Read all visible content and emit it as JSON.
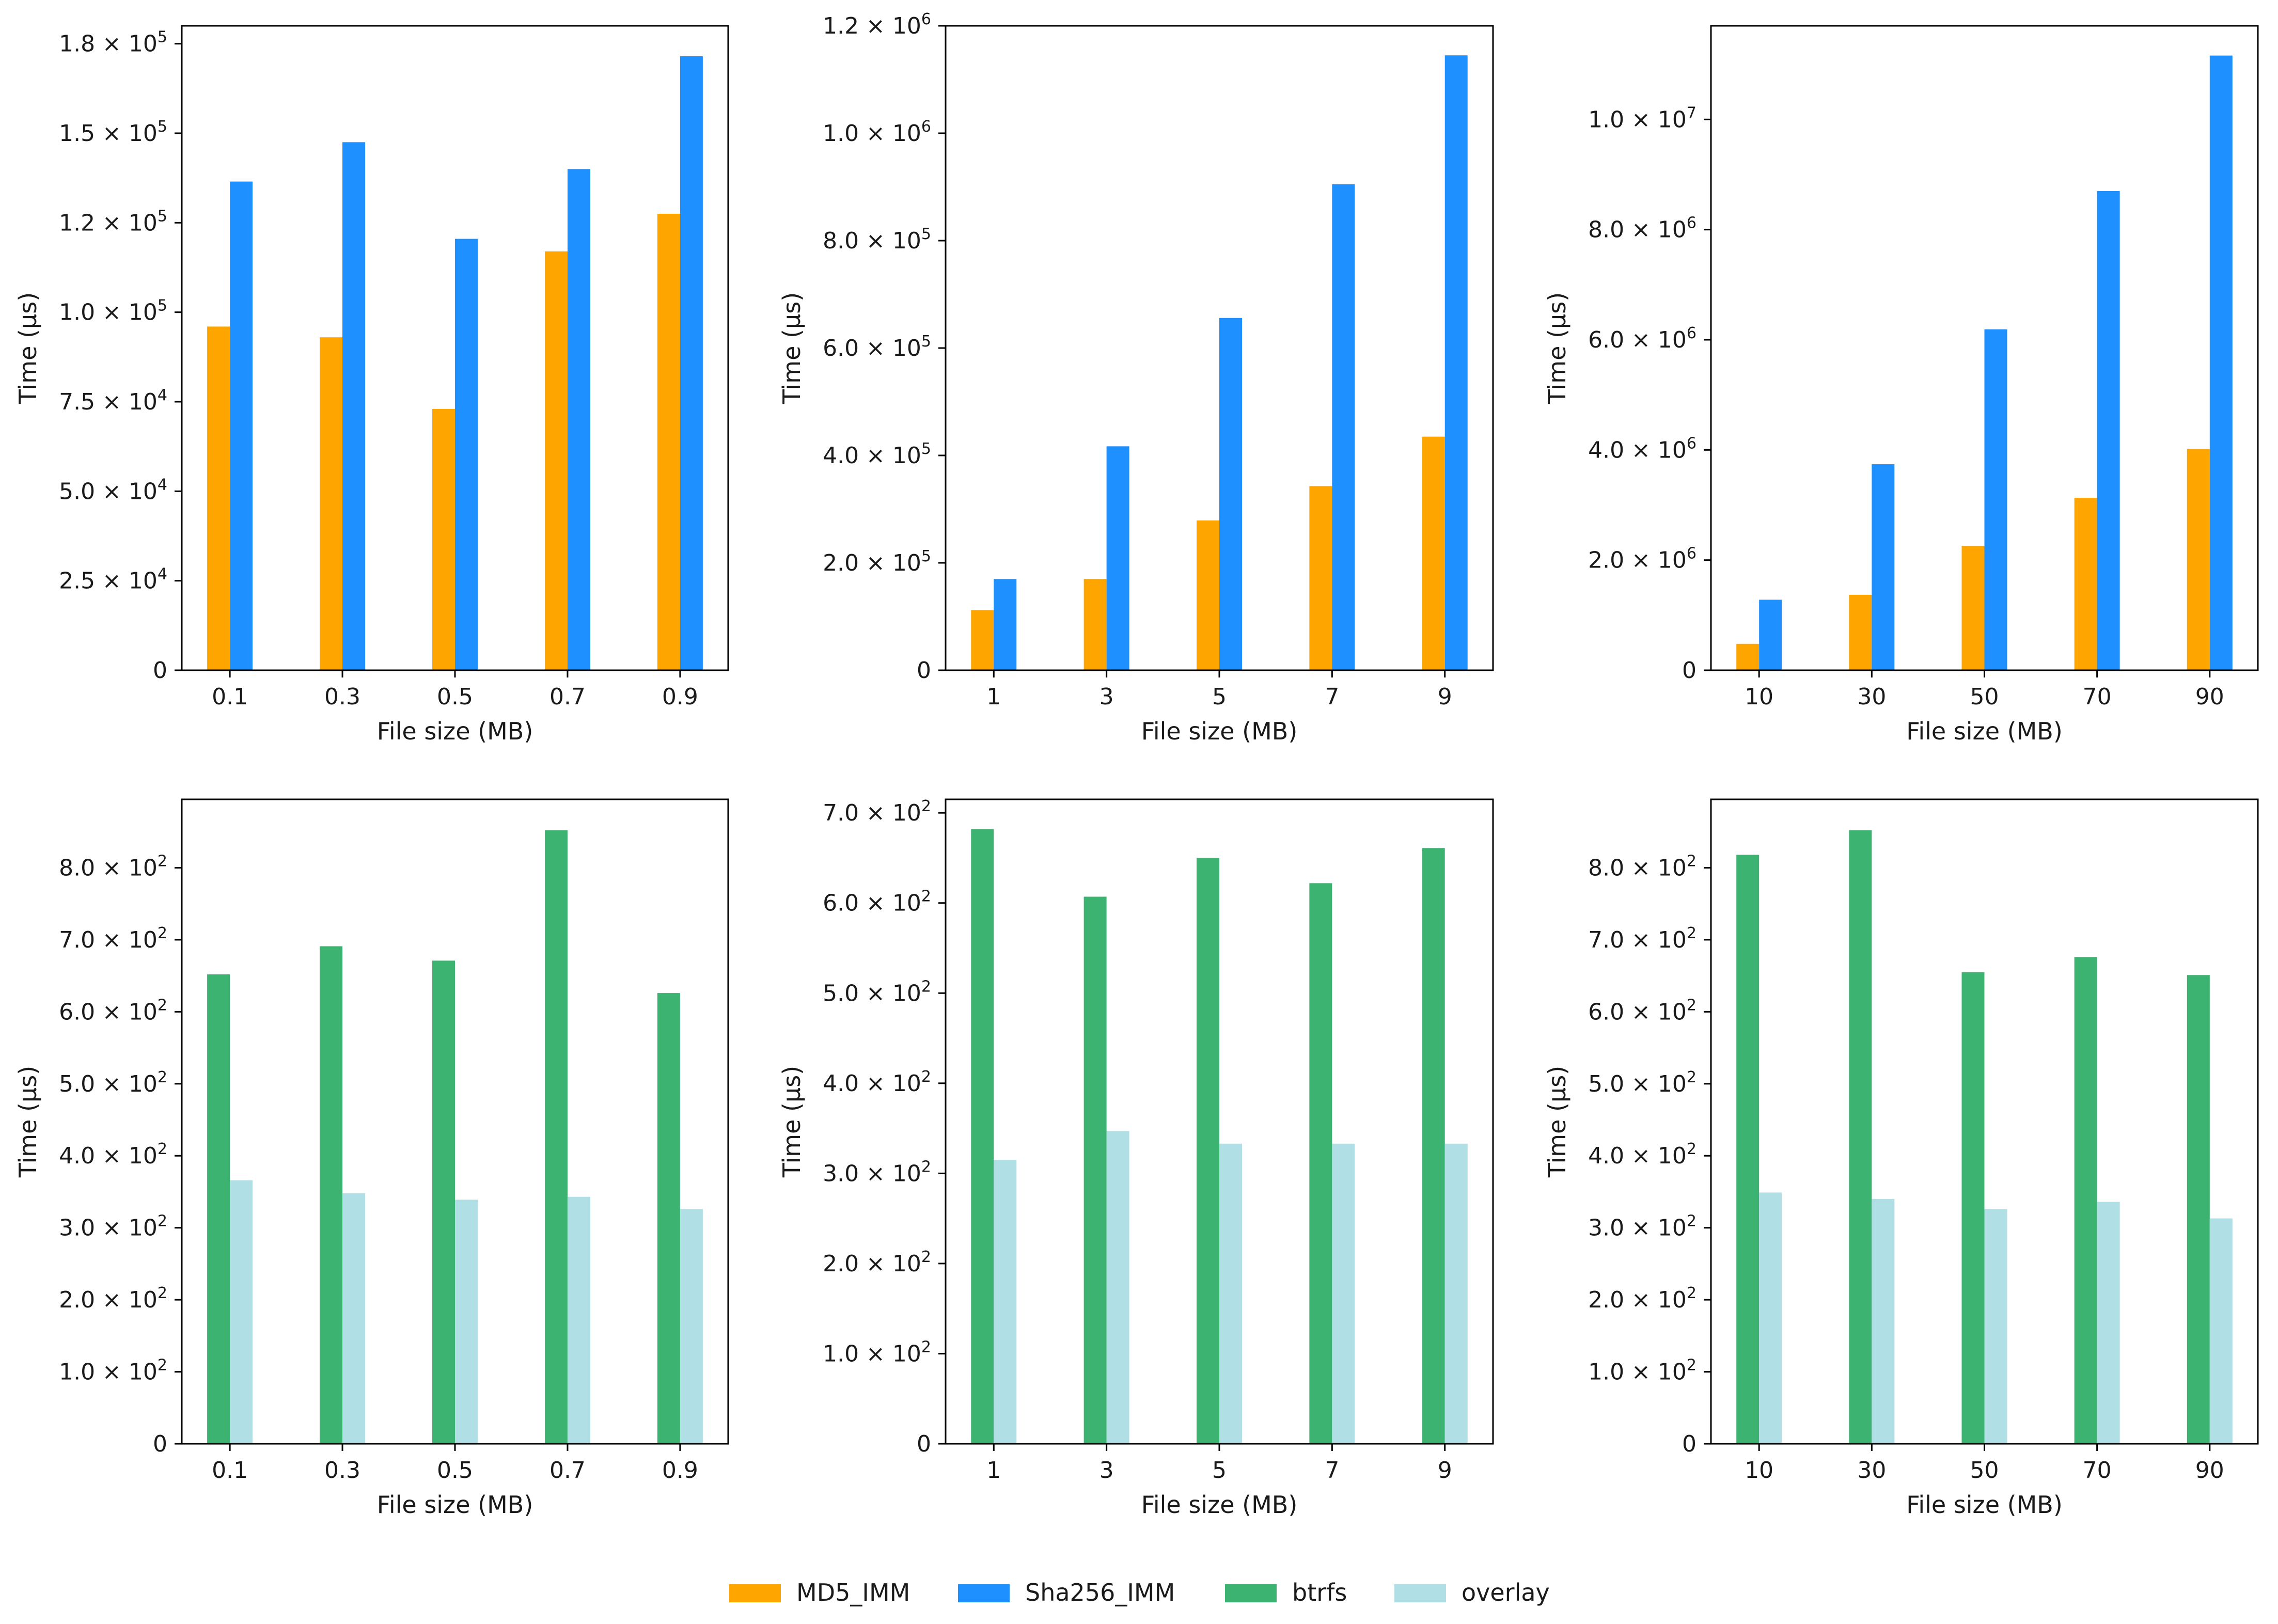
{
  "colors": {
    "MD5_IMM": "#FFA500",
    "Sha256_IMM": "#1E90FF",
    "btrfs": "#3CB371",
    "overlay": "#B0E0E6"
  },
  "legend": {
    "items": [
      {
        "key": "MD5_IMM",
        "label": "MD5_IMM"
      },
      {
        "key": "Sha256_IMM",
        "label": "Sha256_IMM"
      },
      {
        "key": "btrfs",
        "label": "btrfs"
      },
      {
        "key": "overlay",
        "label": "overlay"
      }
    ]
  },
  "chart_data": [
    {
      "type": "bar",
      "xlabel": "File size (MB)",
      "ylabel": "Time (µs)",
      "categories": [
        "0.1",
        "0.3",
        "0.5",
        "0.7",
        "0.9"
      ],
      "ylim": [
        0,
        180000
      ],
      "yticks": [
        {
          "value": 0,
          "label": "0"
        },
        {
          "value": 25000,
          "label": "2.5 × 10",
          "exp": "4"
        },
        {
          "value": 50000,
          "label": "5.0 × 10",
          "exp": "4"
        },
        {
          "value": 75000,
          "label": "7.5 × 10",
          "exp": "4"
        },
        {
          "value": 100000,
          "label": "1.0 × 10",
          "exp": "5"
        },
        {
          "value": 125000,
          "label": "1.2 × 10",
          "exp": "5"
        },
        {
          "value": 150000,
          "label": "1.5 × 10",
          "exp": "5"
        },
        {
          "value": 175000,
          "label": "1.8 × 10",
          "exp": "5"
        }
      ],
      "series": [
        {
          "name": "MD5_IMM",
          "values": [
            96000,
            93000,
            73000,
            117000,
            127500
          ]
        },
        {
          "name": "Sha256_IMM",
          "values": [
            136500,
            147500,
            120500,
            140000,
            171500
          ]
        }
      ]
    },
    {
      "type": "bar",
      "xlabel": "File size (MB)",
      "ylabel": "Time (µs)",
      "categories": [
        "1",
        "3",
        "5",
        "7",
        "9"
      ],
      "ylim": [
        0,
        1200000
      ],
      "yticks": [
        {
          "value": 0,
          "label": "0"
        },
        {
          "value": 200000,
          "label": "2.0 × 10",
          "exp": "5"
        },
        {
          "value": 400000,
          "label": "4.0 × 10",
          "exp": "5"
        },
        {
          "value": 600000,
          "label": "6.0 × 10",
          "exp": "5"
        },
        {
          "value": 800000,
          "label": "8.0 × 10",
          "exp": "5"
        },
        {
          "value": 1000000,
          "label": "1.0 × 10",
          "exp": "6"
        },
        {
          "value": 1200000,
          "label": "1.2 × 10",
          "exp": "6"
        }
      ],
      "series": [
        {
          "name": "MD5_IMM",
          "values": [
            112000,
            170000,
            279000,
            343000,
            435000
          ]
        },
        {
          "name": "Sha256_IMM",
          "values": [
            170000,
            417000,
            656000,
            905000,
            1145000
          ]
        }
      ]
    },
    {
      "type": "bar",
      "xlabel": "File size (MB)",
      "ylabel": "Time (µs)",
      "categories": [
        "10",
        "30",
        "50",
        "70",
        "90"
      ],
      "ylim": [
        0,
        11700000
      ],
      "yticks": [
        {
          "value": 0,
          "label": "0"
        },
        {
          "value": 2000000,
          "label": "2.0 × 10",
          "exp": "6"
        },
        {
          "value": 4000000,
          "label": "4.0 × 10",
          "exp": "6"
        },
        {
          "value": 6000000,
          "label": "6.0 × 10",
          "exp": "6"
        },
        {
          "value": 8000000,
          "label": "8.0 × 10",
          "exp": "6"
        },
        {
          "value": 10000000,
          "label": "1.0 × 10",
          "exp": "7"
        }
      ],
      "series": [
        {
          "name": "MD5_IMM",
          "values": [
            480000,
            1370000,
            2260000,
            3130000,
            4020000
          ]
        },
        {
          "name": "Sha256_IMM",
          "values": [
            1280000,
            3740000,
            6190000,
            8700000,
            11160000
          ]
        }
      ]
    },
    {
      "type": "bar",
      "xlabel": "File size (MB)",
      "ylabel": "Time (µs)",
      "categories": [
        "0.1",
        "0.3",
        "0.5",
        "0.7",
        "0.9"
      ],
      "ylim": [
        0,
        895
      ],
      "yticks": [
        {
          "value": 0,
          "label": "0"
        },
        {
          "value": 100,
          "label": "1.0 × 10",
          "exp": "2"
        },
        {
          "value": 200,
          "label": "2.0 × 10",
          "exp": "2"
        },
        {
          "value": 300,
          "label": "3.0 × 10",
          "exp": "2"
        },
        {
          "value": 400,
          "label": "4.0 × 10",
          "exp": "2"
        },
        {
          "value": 500,
          "label": "5.0 × 10",
          "exp": "2"
        },
        {
          "value": 600,
          "label": "6.0 × 10",
          "exp": "2"
        },
        {
          "value": 700,
          "label": "7.0 × 10",
          "exp": "2"
        },
        {
          "value": 800,
          "label": "8.0 × 10",
          "exp": "2"
        }
      ],
      "series": [
        {
          "name": "btrfs",
          "values": [
            652,
            691,
            671,
            852,
            626
          ]
        },
        {
          "name": "overlay",
          "values": [
            366,
            348,
            339,
            343,
            326
          ]
        }
      ]
    },
    {
      "type": "bar",
      "xlabel": "File size (MB)",
      "ylabel": "Time (µs)",
      "categories": [
        "1",
        "3",
        "5",
        "7",
        "9"
      ],
      "ylim": [
        0,
        715
      ],
      "yticks": [
        {
          "value": 0,
          "label": "0"
        },
        {
          "value": 100,
          "label": "1.0 × 10",
          "exp": "2"
        },
        {
          "value": 200,
          "label": "2.0 × 10",
          "exp": "2"
        },
        {
          "value": 300,
          "label": "3.0 × 10",
          "exp": "2"
        },
        {
          "value": 400,
          "label": "4.0 × 10",
          "exp": "2"
        },
        {
          "value": 500,
          "label": "5.0 × 10",
          "exp": "2"
        },
        {
          "value": 600,
          "label": "6.0 × 10",
          "exp": "2"
        },
        {
          "value": 700,
          "label": "7.0 × 10",
          "exp": "2"
        }
      ],
      "series": [
        {
          "name": "btrfs",
          "values": [
            682,
            607,
            650,
            622,
            661
          ]
        },
        {
          "name": "overlay",
          "values": [
            315,
            347,
            333,
            333,
            333
          ]
        }
      ]
    },
    {
      "type": "bar",
      "xlabel": "File size (MB)",
      "ylabel": "Time (µs)",
      "categories": [
        "10",
        "30",
        "50",
        "70",
        "90"
      ],
      "ylim": [
        0,
        895
      ],
      "yticks": [
        {
          "value": 0,
          "label": "0"
        },
        {
          "value": 100,
          "label": "1.0 × 10",
          "exp": "2"
        },
        {
          "value": 200,
          "label": "2.0 × 10",
          "exp": "2"
        },
        {
          "value": 300,
          "label": "3.0 × 10",
          "exp": "2"
        },
        {
          "value": 400,
          "label": "4.0 × 10",
          "exp": "2"
        },
        {
          "value": 500,
          "label": "5.0 × 10",
          "exp": "2"
        },
        {
          "value": 600,
          "label": "6.0 × 10",
          "exp": "2"
        },
        {
          "value": 700,
          "label": "7.0 × 10",
          "exp": "2"
        },
        {
          "value": 800,
          "label": "8.0 × 10",
          "exp": "2"
        }
      ],
      "series": [
        {
          "name": "btrfs",
          "values": [
            818,
            852,
            655,
            676,
            651
          ]
        },
        {
          "name": "overlay",
          "values": [
            349,
            340,
            326,
            336,
            313
          ]
        }
      ]
    }
  ]
}
